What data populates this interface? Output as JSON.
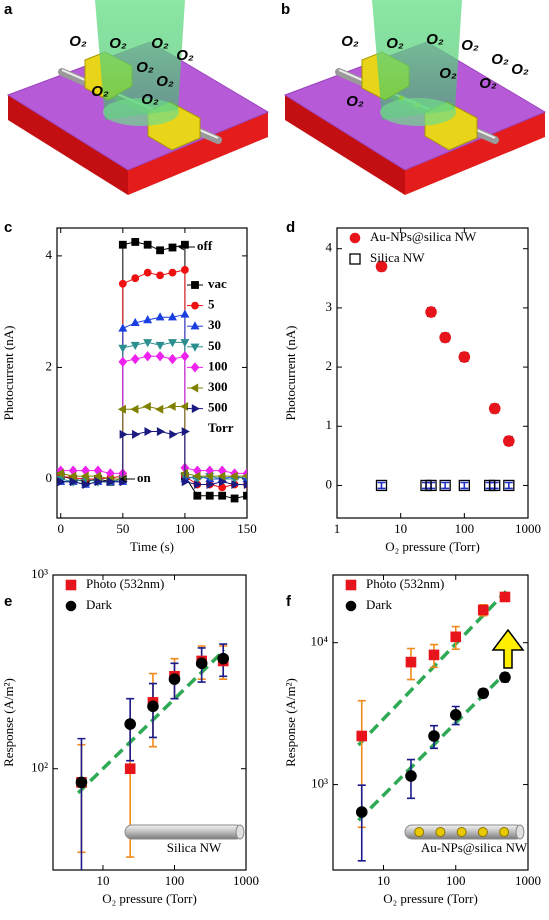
{
  "illustrations": [
    {
      "panel_label": "a",
      "gas_labels": [
        "O₂",
        "O₂",
        "O₂",
        "O₂",
        "O₂",
        "O₂",
        "O₂",
        "O₂"
      ]
    },
    {
      "panel_label": "b",
      "gas_labels": [
        "O₂",
        "O₂",
        "O₂",
        "O₂",
        "O₂",
        "O₂",
        "O₂",
        "O₂",
        "O₂"
      ]
    }
  ],
  "chart_data": [
    {
      "type": "line",
      "panel_label": "c",
      "x_label": "Time (s)",
      "y_label": "Photocurrent (nA)",
      "xlim": [
        -3,
        150
      ],
      "xticks": [
        0,
        50,
        100,
        150
      ],
      "ylim": [
        -0.7,
        4.5
      ],
      "yticks": [
        0,
        2,
        4
      ],
      "x": [
        0,
        10,
        20,
        30,
        40,
        50,
        50,
        60,
        70,
        80,
        90,
        100,
        100,
        110,
        120,
        130,
        140,
        150
      ],
      "series": [
        {
          "name": "vac",
          "color": "#000000",
          "marker": "square",
          "values": [
            0.05,
            0,
            -0.05,
            0,
            -0.05,
            0,
            4.2,
            4.25,
            4.2,
            4.1,
            4.15,
            4.2,
            0.05,
            -0.3,
            -0.3,
            -0.3,
            -0.35,
            -0.3
          ]
        },
        {
          "name": "5",
          "color": "#ee1111",
          "marker": "circle",
          "values": [
            0.05,
            0.02,
            0,
            0,
            0.02,
            0.05,
            3.5,
            3.6,
            3.7,
            3.65,
            3.7,
            3.75,
            0.05,
            -0.1,
            -0.1,
            -0.15,
            -0.1,
            -0.1
          ]
        },
        {
          "name": "30",
          "color": "#1a3fe0",
          "marker": "tri-up",
          "values": [
            -0.05,
            -0.05,
            -0.1,
            -0.05,
            -0.05,
            -0.05,
            2.7,
            2.8,
            2.85,
            2.9,
            2.9,
            2.95,
            0,
            0.05,
            0,
            0,
            0.05,
            0
          ]
        },
        {
          "name": "50",
          "color": "#2b8f8f",
          "marker": "tri-down",
          "values": [
            0,
            -0.05,
            0,
            -0.05,
            -0.05,
            0,
            2.35,
            2.4,
            2.45,
            2.4,
            2.45,
            2.45,
            0.05,
            0,
            0.05,
            0,
            0,
            0.05
          ]
        },
        {
          "name": "100",
          "color": "#ee22ee",
          "marker": "diamond",
          "values": [
            0.15,
            0.15,
            0.15,
            0.15,
            0.1,
            0.1,
            2.1,
            2.15,
            2.2,
            2.2,
            2.15,
            2.2,
            0.2,
            0.15,
            0.15,
            0.15,
            0.1,
            0.1
          ]
        },
        {
          "name": "300",
          "color": "#808000",
          "marker": "tri-left",
          "values": [
            0.1,
            0.05,
            0.05,
            0.05,
            0,
            0,
            1.25,
            1.25,
            1.3,
            1.25,
            1.3,
            1.3,
            0.1,
            0.05,
            0.05,
            0.05,
            0.05,
            0.05
          ]
        },
        {
          "name": "500",
          "color": "#1a1a80",
          "marker": "tri-right",
          "values": [
            -0.05,
            -0.05,
            -0.1,
            -0.05,
            -0.05,
            -0.05,
            0.8,
            0.8,
            0.85,
            0.85,
            0.8,
            0.85,
            -0.05,
            -0.1,
            -0.1,
            -0.05,
            -0.1,
            -0.1
          ]
        }
      ],
      "legend_unit": "Torr",
      "annotations": [
        "off",
        "on"
      ]
    },
    {
      "type": "scatter",
      "panel_label": "d",
      "x_label": "O₂ pressure (Torr)",
      "y_label": "Photocurrent (nA)",
      "x_scale": "log",
      "xlim": [
        1,
        1000
      ],
      "xticks": [
        1,
        10,
        100,
        1000
      ],
      "ylim": [
        -0.55,
        4.35
      ],
      "yticks": [
        0,
        1,
        2,
        3,
        4
      ],
      "series": [
        {
          "name": "Au-NPs@silica NW",
          "color": "#e8141c",
          "marker": "circle",
          "filled": true,
          "error_color": "#000000",
          "x": [
            5,
            30,
            50,
            100,
            300,
            500
          ],
          "values": [
            3.7,
            2.93,
            2.5,
            2.17,
            1.3,
            0.75
          ],
          "errors": [
            0.07,
            0.07,
            0.07,
            0.07,
            0.07,
            0.07
          ]
        },
        {
          "name": "Silica NW",
          "color": "#000000",
          "marker": "square",
          "filled": false,
          "error_color": "#1f2fc4",
          "x": [
            5,
            25,
            30,
            50,
            100,
            250,
            300,
            500
          ],
          "values": [
            0,
            0,
            0,
            0,
            0,
            0,
            0,
            0
          ],
          "errors": [
            0.05,
            0.05,
            0.05,
            0.05,
            0.05,
            0.05,
            0.05,
            0.05
          ]
        }
      ]
    },
    {
      "type": "scatter",
      "panel_label": "e",
      "x_label": "O₂ pressure (Torr)",
      "y_label": "Response (A/m²)",
      "x_scale": "log",
      "y_scale": "log",
      "xlim": [
        2,
        1000
      ],
      "xticks": [
        10,
        100,
        1000
      ],
      "ylim": [
        30,
        1000
      ],
      "yticks": [
        {
          "value": 100,
          "label": "10²"
        },
        {
          "value": 1000,
          "label": "10³"
        }
      ],
      "series": [
        {
          "name": "Photo (532nm)",
          "color": "#e8141c",
          "marker": "square",
          "filled": true,
          "error_color": "#f08a1a",
          "x": [
            5,
            24,
            50,
            100,
            240,
            480
          ],
          "values": [
            85,
            100,
            220,
            300,
            360,
            360
          ],
          "errors": [
            48,
            65,
            90,
            70,
            70,
            70
          ]
        },
        {
          "name": "Dark",
          "color": "#000000",
          "marker": "circle",
          "filled": true,
          "error_color": "#1a1a8c",
          "x": [
            5,
            24,
            50,
            100,
            240,
            480
          ],
          "values": [
            85,
            170,
            210,
            290,
            350,
            370
          ],
          "errors": [
            58,
            60,
            65,
            60,
            70,
            70
          ]
        }
      ],
      "fits": [
        {
          "color": "#2eaa55",
          "x": [
            4.5,
            500
          ],
          "y": [
            75,
            410
          ]
        }
      ],
      "inset_label": "Silica NW"
    },
    {
      "type": "scatter",
      "panel_label": "f",
      "x_label": "O₂ pressure (Torr)",
      "y_label": "Response (A/m²)",
      "x_scale": "log",
      "y_scale": "log",
      "xlim": [
        2,
        1000
      ],
      "xticks": [
        10,
        100,
        1000
      ],
      "ylim": [
        250,
        30000
      ],
      "yticks": [
        {
          "value": 1000,
          "label": "10³"
        },
        {
          "value": 10000,
          "label": "10⁴"
        }
      ],
      "series": [
        {
          "name": "Photo (532nm)",
          "color": "#e8141c",
          "marker": "square",
          "filled": true,
          "error_color": "#f08a1a",
          "x": [
            5,
            24,
            50,
            100,
            240,
            480
          ],
          "values": [
            2200,
            7300,
            8200,
            11000,
            17000,
            21000
          ],
          "errors": [
            1700,
            1800,
            1500,
            2000,
            1500,
            1000
          ]
        },
        {
          "name": "Dark",
          "color": "#000000",
          "marker": "circle",
          "filled": true,
          "error_color": "#1a1a8c",
          "x": [
            5,
            24,
            50,
            100,
            240,
            480
          ],
          "values": [
            640,
            1150,
            2200,
            3100,
            4400,
            5700
          ],
          "errors": [
            350,
            350,
            400,
            450,
            300,
            400
          ]
        }
      ],
      "fits": [
        {
          "color": "#2eaa55",
          "x": [
            4.5,
            500
          ],
          "y": [
            1900,
            23000
          ]
        },
        {
          "color": "#2eaa55",
          "x": [
            4.5,
            500
          ],
          "y": [
            560,
            6200
          ]
        }
      ],
      "inset_label": "Au-NPs@silica NW"
    }
  ]
}
